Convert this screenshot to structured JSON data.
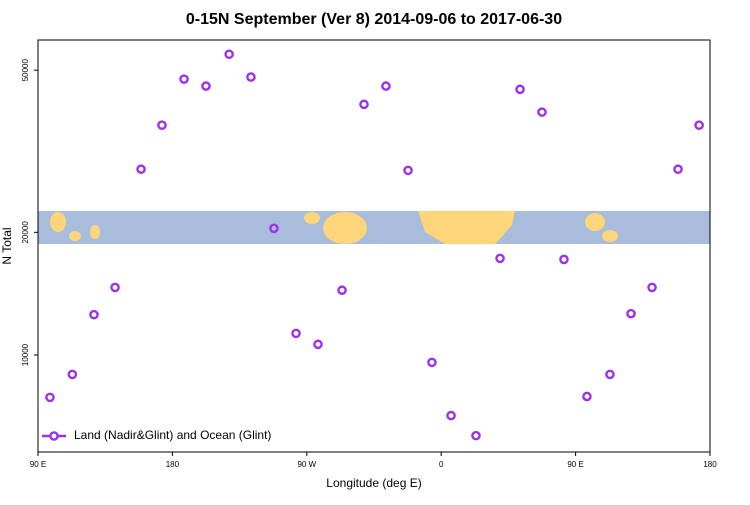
{
  "chart_data": {
    "type": "scatter",
    "title": "0-15N September (Ver 8)   2014-09-06 to 2017-06-30",
    "x_label": "Longitude (deg E)",
    "y_label": "N Total",
    "log_y": true,
    "legend": "bottom-left",
    "xlim": [
      90,
      540
    ],
    "xticks": [
      {
        "value": 90,
        "label": "90 E"
      },
      180,
      {
        "value": 270,
        "label": "90 W"
      },
      {
        "value": 360,
        "label": "0"
      },
      {
        "value": 450,
        "label": "90 E"
      },
      {
        "value": 540,
        "label": "180"
      }
    ],
    "ylim": [
      5780,
      59300
    ],
    "yticks": [
      10000,
      20000,
      50000
    ],
    "series": [
      {
        "name": "Land (Nadir&Glint) and Ocean (Glint)",
        "color": "#9b30f0",
        "x": [
          98,
          113,
          127.5,
          141.6,
          159,
          173,
          187.8,
          202.5,
          218,
          232.6,
          248,
          262.8,
          277.5,
          293.6,
          308.3,
          323,
          337.8,
          353.8,
          366.6,
          383.3,
          399.4,
          412.8,
          427.5,
          442.2,
          457.6,
          473,
          487.1,
          501.2,
          518.6,
          532.7
        ],
        "values": [
          7870,
          8960,
          12560,
          14650,
          28570,
          36640,
          47540,
          45700,
          54700,
          48090,
          20460,
          11300,
          10620,
          14420,
          41220,
          45700,
          28380,
          9590,
          7100,
          6340,
          17260,
          44870,
          39450,
          17160,
          7910,
          8960,
          12630,
          14650,
          28570,
          36640
        ]
      }
    ]
  }
}
